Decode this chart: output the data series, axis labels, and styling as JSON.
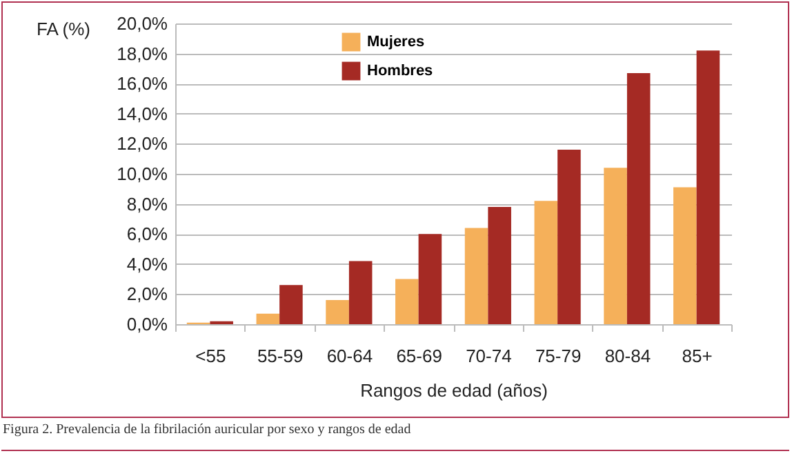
{
  "chart_data": {
    "type": "bar",
    "xlabel": "Rangos de edad (años)",
    "ylabel": "FA (%)",
    "categories": [
      "<55",
      "55-59",
      "60-64",
      "65-69",
      "70-74",
      "75-79",
      "80-84",
      "85+"
    ],
    "series": [
      {
        "name": "Mujeres",
        "color": "#f5b05a",
        "values": [
          0.1,
          0.7,
          1.6,
          3.0,
          6.4,
          8.2,
          10.4,
          9.1
        ]
      },
      {
        "name": "Hombres",
        "color": "#a52a24",
        "values": [
          0.2,
          2.6,
          4.2,
          6.0,
          7.8,
          11.6,
          16.7,
          18.2
        ]
      }
    ],
    "ylim": [
      0,
      20
    ],
    "yticks": [
      {
        "value": 0,
        "label": "0,0%"
      },
      {
        "value": 2,
        "label": "2,0%"
      },
      {
        "value": 4,
        "label": "4,0%"
      },
      {
        "value": 6,
        "label": "6,0%"
      },
      {
        "value": 8,
        "label": "8,0%"
      },
      {
        "value": 10,
        "label": "10,0%"
      },
      {
        "value": 12,
        "label": "12,0%"
      },
      {
        "value": 14,
        "label": "14,0%"
      },
      {
        "value": 16,
        "label": "16,0%"
      },
      {
        "value": 18,
        "label": "18,0%"
      },
      {
        "value": 20,
        "label": "20,0%"
      }
    ],
    "grid": "y",
    "legend": "top left",
    "annotations": [
      "Figura 2. Prevalencia de la fibrilación auricular por sexo y rangos de edad"
    ]
  }
}
